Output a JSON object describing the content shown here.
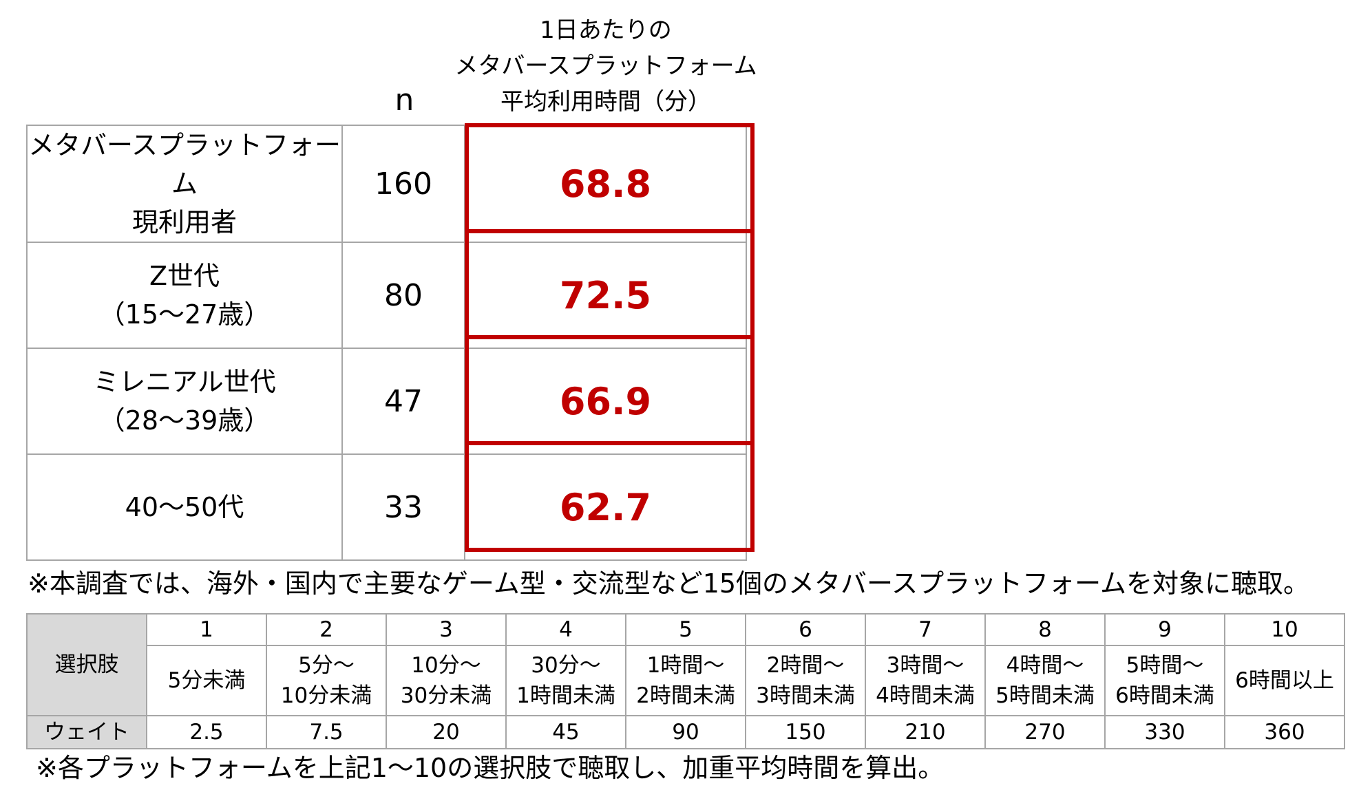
{
  "header": {
    "n_label": "n",
    "metric_lines": [
      "1日あたりの",
      "メタバースプラットフォーム",
      "平均利用時間（分）"
    ]
  },
  "rows": [
    {
      "label_lines": [
        "メタバースプラットフォーム",
        "現利用者"
      ],
      "n": "160",
      "value": "68.8"
    },
    {
      "label_lines": [
        "Z世代",
        "（15～27歳）"
      ],
      "n": "80",
      "value": "72.5"
    },
    {
      "label_lines": [
        "ミレニアル世代",
        "（28～39歳）"
      ],
      "n": "47",
      "value": "66.9"
    },
    {
      "label_lines": [
        "40～50代"
      ],
      "n": "33",
      "value": "62.7"
    }
  ],
  "note_top": "※本調査では、海外・国内で主要なゲーム型・交流型など15個のメタバースプラットフォームを対象に聴取。",
  "choices": {
    "row_label_options": "選択肢",
    "row_label_weight": "ウェイト",
    "options": [
      {
        "num": "1",
        "lines": [
          "5分未満"
        ],
        "weight": "2.5"
      },
      {
        "num": "2",
        "lines": [
          "5分～",
          "10分未満"
        ],
        "weight": "7.5"
      },
      {
        "num": "3",
        "lines": [
          "10分～",
          "30分未満"
        ],
        "weight": "20"
      },
      {
        "num": "4",
        "lines": [
          "30分～",
          "1時間未満"
        ],
        "weight": "45"
      },
      {
        "num": "5",
        "lines": [
          "1時間～",
          "2時間未満"
        ],
        "weight": "90"
      },
      {
        "num": "6",
        "lines": [
          "2時間～",
          "3時間未満"
        ],
        "weight": "150"
      },
      {
        "num": "7",
        "lines": [
          "3時間～",
          "4時間未満"
        ],
        "weight": "210"
      },
      {
        "num": "8",
        "lines": [
          "4時間～",
          "5時間未満"
        ],
        "weight": "270"
      },
      {
        "num": "9",
        "lines": [
          "5時間～",
          "6時間未満"
        ],
        "weight": "330"
      },
      {
        "num": "10",
        "lines": [
          "6時間以上"
        ],
        "weight": "360"
      }
    ]
  },
  "note_bottom": "※各プラットフォームを上記1～10の選択肢で聴取し、加重平均時間を算出。",
  "colors": {
    "accent": "#c00000",
    "grid": "#a6a6a6",
    "header_fill": "#d9d9d9"
  }
}
